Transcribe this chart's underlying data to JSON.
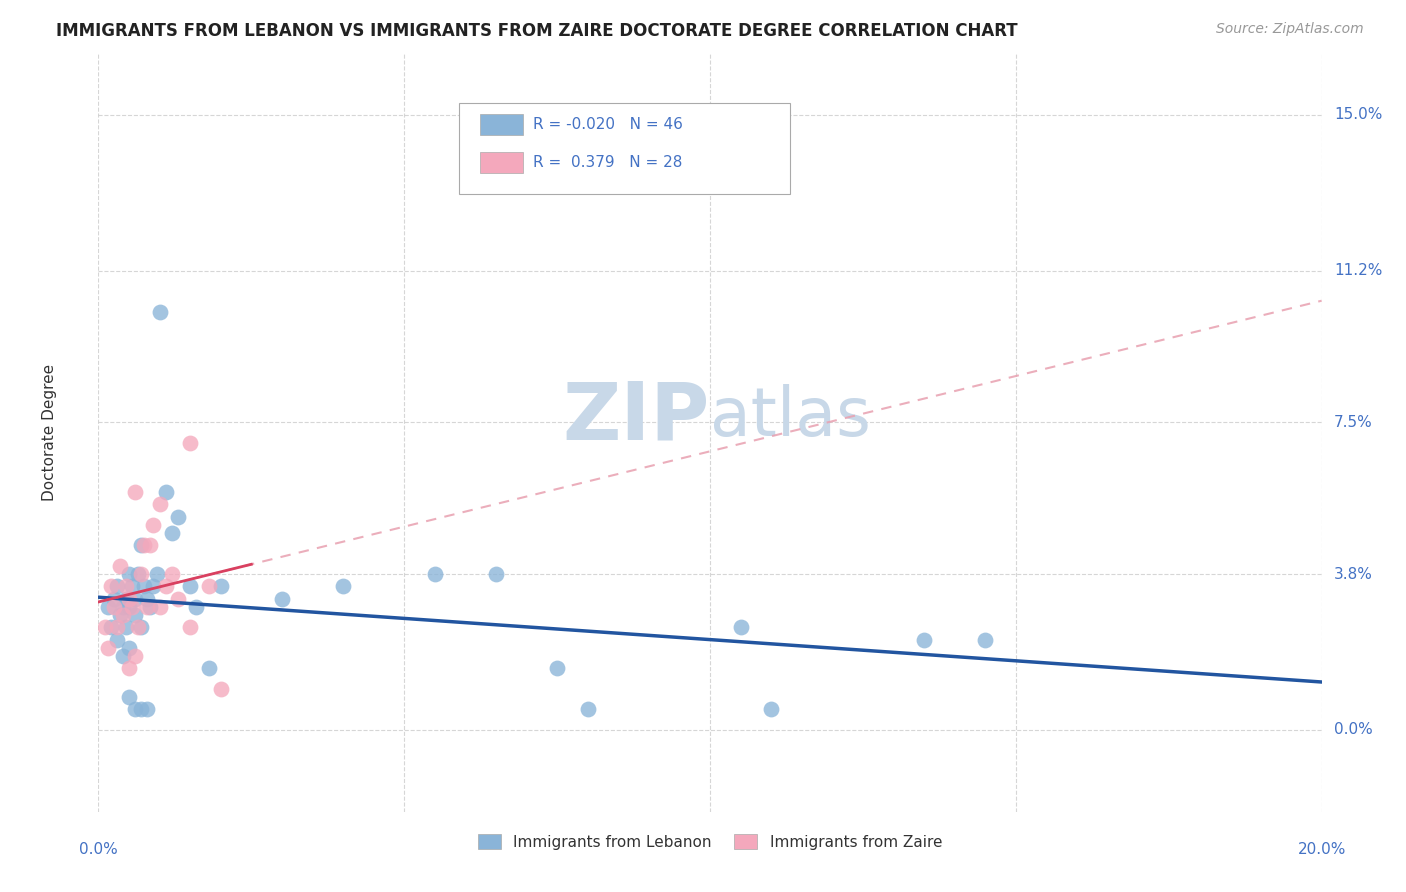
{
  "title": "IMMIGRANTS FROM LEBANON VS IMMIGRANTS FROM ZAIRE DOCTORATE DEGREE CORRELATION CHART",
  "source": "Source: ZipAtlas.com",
  "ylabel": "Doctorate Degree",
  "ytick_labels": [
    "0.0%",
    "3.8%",
    "7.5%",
    "11.2%",
    "15.0%"
  ],
  "ytick_values": [
    0.0,
    3.8,
    7.5,
    11.2,
    15.0
  ],
  "xlim": [
    0.0,
    20.0
  ],
  "ylim": [
    -2.0,
    16.5
  ],
  "legend_blue_r": "-0.020",
  "legend_blue_n": "46",
  "legend_pink_r": "0.379",
  "legend_pink_n": "28",
  "blue_color": "#8ab4d8",
  "pink_color": "#f4a8bc",
  "blue_line_color": "#2255a0",
  "pink_line_color": "#d94060",
  "pink_dash_color": "#e8a0b0",
  "grid_color": "#cccccc",
  "title_color": "#333333",
  "axis_label_color": "#4472c4",
  "watermark_color": "#c8d8e8",
  "blue_scatter_x": [
    0.15,
    0.2,
    0.25,
    0.3,
    0.3,
    0.35,
    0.4,
    0.4,
    0.45,
    0.45,
    0.5,
    0.5,
    0.5,
    0.55,
    0.6,
    0.6,
    0.65,
    0.7,
    0.7,
    0.75,
    0.8,
    0.85,
    0.9,
    0.95,
    1.0,
    1.1,
    1.2,
    1.3,
    1.5,
    1.6,
    1.8,
    2.0,
    3.0,
    4.0,
    5.5,
    6.5,
    7.5,
    8.0,
    10.5,
    11.0,
    13.5,
    14.5,
    0.5,
    0.6,
    0.7,
    0.8
  ],
  "blue_scatter_y": [
    3.0,
    2.5,
    3.2,
    3.5,
    2.2,
    2.8,
    3.0,
    1.8,
    3.2,
    2.5,
    3.8,
    3.0,
    2.0,
    3.5,
    3.2,
    2.8,
    3.8,
    4.5,
    2.5,
    3.5,
    3.2,
    3.0,
    3.5,
    3.8,
    10.2,
    5.8,
    4.8,
    5.2,
    3.5,
    3.0,
    1.5,
    3.5,
    3.2,
    3.5,
    3.8,
    3.8,
    1.5,
    0.5,
    2.5,
    0.5,
    2.2,
    2.2,
    0.8,
    0.5,
    0.5,
    0.5
  ],
  "pink_scatter_x": [
    0.1,
    0.15,
    0.2,
    0.25,
    0.3,
    0.35,
    0.4,
    0.45,
    0.5,
    0.55,
    0.6,
    0.65,
    0.7,
    0.75,
    0.8,
    0.85,
    0.9,
    1.0,
    1.0,
    1.1,
    1.2,
    1.3,
    1.5,
    1.5,
    1.8,
    2.0,
    0.5,
    0.6
  ],
  "pink_scatter_y": [
    2.5,
    2.0,
    3.5,
    3.0,
    2.5,
    4.0,
    2.8,
    3.5,
    3.2,
    3.0,
    5.8,
    2.5,
    3.8,
    4.5,
    3.0,
    4.5,
    5.0,
    5.5,
    3.0,
    3.5,
    3.8,
    3.2,
    7.0,
    2.5,
    3.5,
    1.0,
    1.5,
    1.8
  ]
}
